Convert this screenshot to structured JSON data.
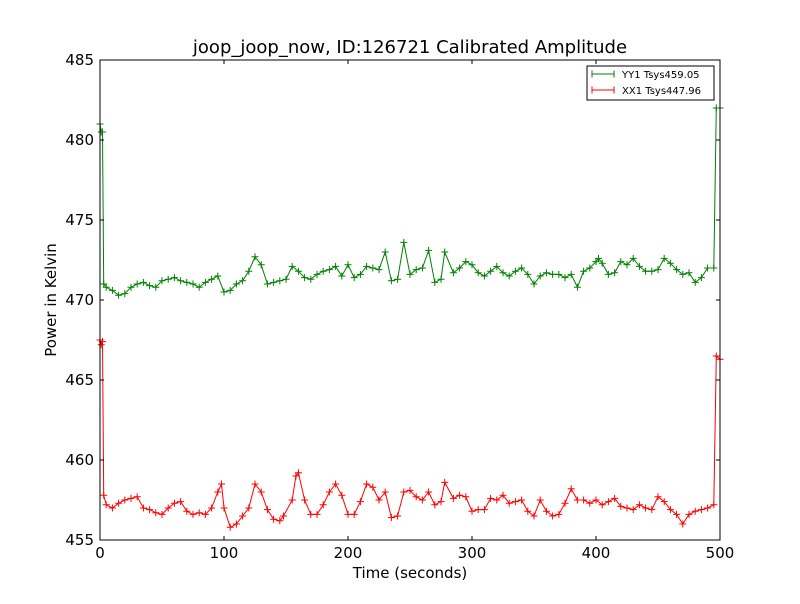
{
  "chart_data": {
    "type": "line",
    "title": "joop_joop_now, ID:126721 Calibrated Amplitude",
    "xlabel": "Time (seconds)",
    "ylabel": "Power in Kelvin",
    "xlim": [
      0,
      500
    ],
    "ylim": [
      455,
      485
    ],
    "xticks": [
      0,
      100,
      200,
      300,
      400,
      500
    ],
    "yticks": [
      455,
      460,
      465,
      470,
      475,
      480,
      485
    ],
    "grid": false,
    "legend_position": "top-right",
    "series": [
      {
        "name": "YY1 Tsys459.05",
        "color": "#008000",
        "marker": "+",
        "x": [
          0,
          1,
          2,
          3,
          5,
          10,
          15,
          20,
          25,
          30,
          35,
          40,
          45,
          50,
          55,
          60,
          65,
          70,
          75,
          80,
          85,
          90,
          95,
          100,
          105,
          110,
          115,
          120,
          125,
          130,
          135,
          140,
          145,
          150,
          155,
          160,
          165,
          170,
          175,
          180,
          185,
          190,
          195,
          200,
          205,
          210,
          215,
          220,
          225,
          230,
          235,
          240,
          245,
          250,
          255,
          260,
          265,
          270,
          275,
          278,
          285,
          290,
          295,
          300,
          305,
          310,
          315,
          320,
          325,
          330,
          335,
          340,
          345,
          350,
          355,
          360,
          365,
          370,
          375,
          380,
          385,
          390,
          395,
          400,
          402,
          405,
          410,
          415,
          420,
          425,
          430,
          435,
          440,
          445,
          450,
          455,
          460,
          465,
          470,
          475,
          480,
          485,
          490,
          495,
          497,
          500
        ],
        "y": [
          481,
          480.5,
          480.5,
          471,
          470.8,
          470.6,
          470.3,
          470.4,
          470.8,
          471,
          471.1,
          470.9,
          470.8,
          471.2,
          471.3,
          471.4,
          471.2,
          471.1,
          471.0,
          470.8,
          471.1,
          471.3,
          471.5,
          470.5,
          470.6,
          471.0,
          471.2,
          471.8,
          472.7,
          472.2,
          471.0,
          471.1,
          471.2,
          471.3,
          472.1,
          471.8,
          471.4,
          471.3,
          471.6,
          471.8,
          471.9,
          472.1,
          471.5,
          472.2,
          471.4,
          471.6,
          472.1,
          472.0,
          471.9,
          473.0,
          471.2,
          471.3,
          473.6,
          471.6,
          471.9,
          472.0,
          473.1,
          471.1,
          471.3,
          473.0,
          471.7,
          472.0,
          472.4,
          472.2,
          471.7,
          471.5,
          471.8,
          472.1,
          471.7,
          471.5,
          471.8,
          472.0,
          471.6,
          471.0,
          471.5,
          471.7,
          471.6,
          471.6,
          471.4,
          471.6,
          470.8,
          471.8,
          472.0,
          472.4,
          472.6,
          472.3,
          471.6,
          471.7,
          472.4,
          472.2,
          472.6,
          472.1,
          471.8,
          471.8,
          471.9,
          472.6,
          472.3,
          471.9,
          471.6,
          471.7,
          471.1,
          471.4,
          472.0,
          472.0,
          482,
          482
        ]
      },
      {
        "name": "XX1 Tsys447.96",
        "color": "#ff0000",
        "marker": "+",
        "x": [
          0,
          1,
          2,
          3,
          5,
          10,
          15,
          20,
          25,
          30,
          35,
          40,
          45,
          50,
          55,
          60,
          65,
          70,
          75,
          80,
          85,
          90,
          95,
          98,
          100,
          105,
          110,
          115,
          120,
          125,
          130,
          135,
          140,
          145,
          148,
          155,
          158,
          160,
          165,
          170,
          175,
          180,
          185,
          190,
          195,
          200,
          205,
          210,
          215,
          220,
          225,
          230,
          235,
          240,
          245,
          250,
          255,
          260,
          265,
          270,
          275,
          278,
          285,
          290,
          295,
          300,
          305,
          310,
          315,
          320,
          325,
          330,
          335,
          340,
          345,
          350,
          355,
          360,
          365,
          370,
          375,
          380,
          385,
          390,
          395,
          400,
          405,
          410,
          415,
          420,
          425,
          430,
          435,
          440,
          445,
          450,
          455,
          460,
          465,
          470,
          475,
          480,
          485,
          490,
          495,
          497,
          500
        ],
        "y": [
          467.5,
          467.2,
          467.4,
          457.8,
          457.2,
          457.0,
          457.3,
          457.5,
          457.6,
          457.7,
          457.0,
          456.9,
          456.7,
          456.6,
          457.0,
          457.3,
          457.4,
          456.8,
          456.6,
          456.7,
          456.6,
          457.0,
          458.0,
          458.5,
          457.0,
          455.8,
          456.0,
          456.5,
          457.0,
          458.5,
          458.0,
          456.9,
          456.3,
          456.2,
          456.5,
          457.5,
          459.0,
          459.2,
          457.5,
          456.6,
          456.6,
          457.2,
          458.0,
          458.5,
          457.8,
          456.6,
          456.6,
          457.4,
          458.5,
          458.3,
          457.5,
          458.0,
          456.4,
          456.5,
          458.0,
          458.1,
          457.7,
          457.5,
          458.0,
          457.2,
          457.4,
          458.6,
          457.6,
          457.8,
          457.7,
          456.8,
          456.9,
          456.9,
          457.6,
          457.5,
          457.8,
          457.3,
          457.4,
          457.5,
          456.8,
          456.5,
          457.5,
          456.8,
          456.5,
          456.6,
          457.3,
          458.2,
          457.5,
          457.5,
          457.3,
          457.5,
          457.2,
          457.4,
          457.6,
          457.1,
          457.0,
          456.9,
          457.2,
          457.0,
          456.9,
          457.7,
          457.4,
          456.9,
          456.6,
          456.0,
          456.6,
          456.8,
          456.9,
          457.0,
          457.2,
          466.5,
          466.3
        ]
      }
    ]
  }
}
